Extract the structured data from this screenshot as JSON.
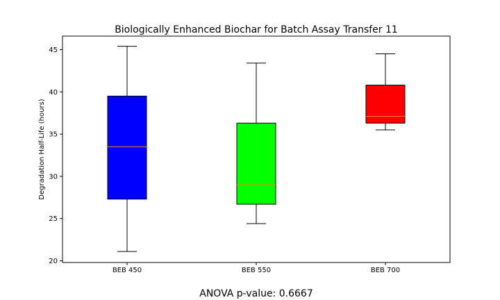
{
  "chart_data": {
    "type": "box",
    "title": "Biologically Enhanced Biochar for Batch Assay Transfer 11",
    "xlabel": "",
    "ylabel": "Degradation Half-Life (hours)",
    "ylim": [
      19.8,
      46.6
    ],
    "yticks": [
      20,
      25,
      30,
      35,
      40,
      45
    ],
    "grid": false,
    "categories": [
      "BEB 450",
      "BEB 550",
      "BEB 700"
    ],
    "boxes": [
      {
        "label": "BEB 450",
        "whisker_low": 21.1,
        "q1": 27.3,
        "median": 33.5,
        "q3": 39.5,
        "whisker_high": 45.4,
        "color": "#0000ff"
      },
      {
        "label": "BEB 550",
        "whisker_low": 24.4,
        "q1": 26.7,
        "median": 29.0,
        "q3": 36.3,
        "whisker_high": 43.4,
        "color": "#00ff00"
      },
      {
        "label": "BEB 700",
        "whisker_low": 35.5,
        "q1": 36.3,
        "median": 37.1,
        "q3": 40.8,
        "whisker_high": 44.5,
        "color": "#ff0000"
      }
    ],
    "median_color": "#ff7f0e"
  },
  "footer": {
    "anova_text": "ANOVA p-value: 0.6667"
  }
}
